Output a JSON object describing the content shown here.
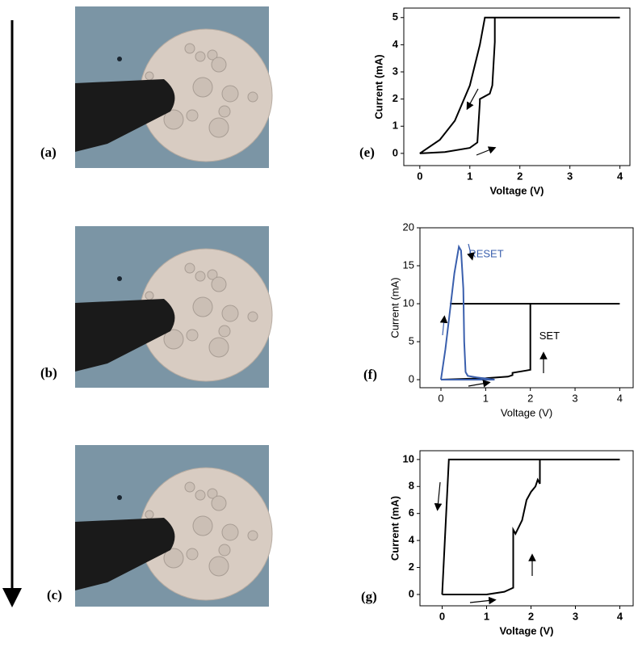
{
  "images": [
    {
      "label": "(a)"
    },
    {
      "label": "(b)"
    },
    {
      "label": "(c)"
    }
  ],
  "chart_data": [
    {
      "type": "line",
      "label": "(e)",
      "x_label": "Voltage (V)",
      "y_label": "Current (mA)",
      "xlim": [
        -0.32,
        4.2
      ],
      "ylim": [
        -0.45,
        5.35
      ],
      "xticks": [
        0,
        1,
        2,
        3,
        4
      ],
      "yticks": [
        0,
        1,
        2,
        3,
        4,
        5
      ],
      "series": [
        {
          "color": "#000000",
          "x": [
            0,
            0.5,
            1.0,
            1.15,
            1.2,
            1.2,
            1.4,
            1.45,
            1.5,
            1.5,
            4,
            1.3,
            1.2,
            1.0,
            0.7,
            0.4,
            0
          ],
          "values": [
            0,
            0.05,
            0.2,
            0.4,
            1.9,
            2.0,
            2.2,
            2.5,
            4.1,
            5,
            5,
            5,
            4,
            2.5,
            1.2,
            0.5,
            0
          ]
        }
      ],
      "annotations": []
    },
    {
      "type": "line",
      "label": "(f)",
      "x_label": "Voltage (V)",
      "y_label": "Current (mA)",
      "xlim": [
        -0.47,
        4.3
      ],
      "ylim": [
        -1.06,
        20
      ],
      "xticks": [
        0,
        1,
        2,
        3,
        4
      ],
      "yticks": [
        0,
        5,
        10,
        15,
        20
      ],
      "series": [
        {
          "color": "#000000",
          "x": [
            0,
            0.5,
            1,
            1.5,
            1.6,
            1.6,
            1.9,
            2,
            2,
            4,
            0.2
          ],
          "values": [
            0,
            0.1,
            0.2,
            0.4,
            0.6,
            0.9,
            1.2,
            1.3,
            10,
            10,
            10
          ]
        },
        {
          "color": "#3a5fad",
          "x": [
            0,
            0.1,
            0.2,
            0.3,
            0.4,
            0.45,
            0.5,
            0.52,
            0.55,
            0.6,
            0.8,
            1.2,
            0.5,
            0
          ],
          "values": [
            0,
            4,
            9,
            14,
            17.5,
            17,
            12,
            5,
            1,
            0.5,
            0.3,
            0,
            0,
            0
          ]
        }
      ],
      "annotations": [
        {
          "text": "RESET",
          "color": "#3a5fad"
        },
        {
          "text": "SET",
          "color": "#000000"
        }
      ]
    },
    {
      "type": "line",
      "label": "(g)",
      "x_label": "Voltage (V)",
      "y_label": "Current (mA)",
      "xlim": [
        -0.5,
        4.3
      ],
      "ylim": [
        -0.84,
        10.65
      ],
      "xticks": [
        0,
        1,
        2,
        3,
        4
      ],
      "yticks": [
        0,
        2,
        4,
        6,
        8,
        10
      ],
      "series": [
        {
          "color": "#000000",
          "x": [
            0,
            0.5,
            1,
            1.4,
            1.6,
            1.6,
            1.65,
            1.8,
            1.9,
            2.0,
            2.1,
            2.15,
            2.2,
            2.2,
            4,
            0.15,
            0
          ],
          "values": [
            0,
            0,
            0,
            0.2,
            0.5,
            4.8,
            4.5,
            5.5,
            7,
            7.6,
            8,
            8.5,
            8.2,
            10,
            10,
            10,
            0
          ]
        }
      ],
      "annotations": []
    }
  ]
}
